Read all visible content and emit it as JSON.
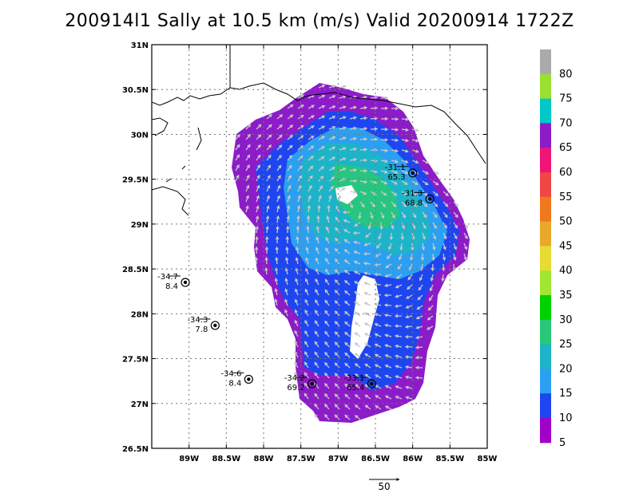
{
  "title": "200914l1 Sally at 10.5 km (m/s) Valid 20200914  1722Z",
  "map": {
    "lat_labels": [
      "31N",
      "30.5N",
      "30N",
      "29.5N",
      "29N",
      "28.5N",
      "28N",
      "27.5N",
      "27N",
      "26.5N"
    ],
    "lon_labels": [
      "89W",
      "88.5W",
      "88W",
      "87.5W",
      "87W",
      "86.5W",
      "86W",
      "85.5W",
      "85W"
    ],
    "lat_range": [
      26.5,
      31.0
    ],
    "lon_range": [
      -89.5,
      -85.0
    ],
    "gridlines": true
  },
  "colorbar": {
    "labels": [
      "80",
      "75",
      "70",
      "65",
      "60",
      "55",
      "50",
      "45",
      "40",
      "35",
      "30",
      "25",
      "20",
      "15",
      "10",
      "5"
    ],
    "colors": [
      "#aaaaaa",
      "#99e033",
      "#00c8c8",
      "#8c1cc8",
      "#f01478",
      "#f04646",
      "#f0781e",
      "#e8a82a",
      "#e6dc32",
      "#a0e632",
      "#00d200",
      "#28c878",
      "#1eb4c8",
      "#2ca0f0",
      "#1e46f0",
      "#a000c8"
    ]
  },
  "vector_scale": {
    "value": "50"
  },
  "stations": [
    {
      "id": "s1",
      "lat": 29.57,
      "lon": -86.0,
      "value_top": "31.1",
      "value_bottom": "65.3"
    },
    {
      "id": "s2",
      "lat": 29.28,
      "lon": -85.77,
      "value_top": "31.3",
      "value_bottom": "68.8"
    },
    {
      "id": "s3",
      "lat": 28.35,
      "lon": -89.05,
      "value_top": "34.7",
      "value_bottom": "8.4"
    },
    {
      "id": "s4",
      "lat": 27.87,
      "lon": -88.65,
      "value_top": "34.3",
      "value_bottom": "7.8"
    },
    {
      "id": "s5",
      "lat": 27.27,
      "lon": -88.2,
      "value_top": "34.6",
      "value_bottom": "8.4"
    },
    {
      "id": "s6",
      "lat": 27.22,
      "lon": -87.35,
      "value_top": "34.2",
      "value_bottom": "69.2"
    },
    {
      "id": "s7",
      "lat": 27.22,
      "lon": -86.55,
      "value_top": "33.1",
      "value_bottom": "65.4"
    }
  ]
}
